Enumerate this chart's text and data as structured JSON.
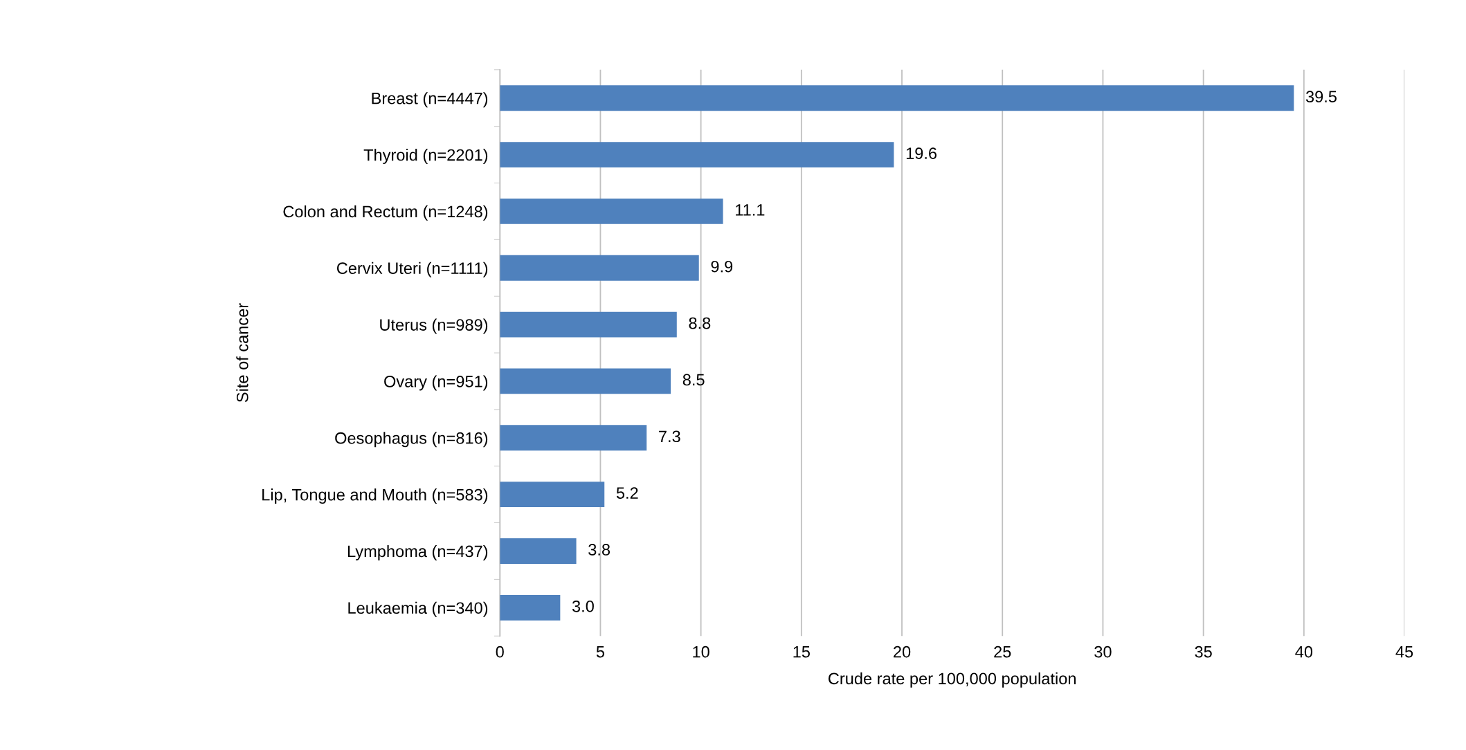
{
  "chart_data": {
    "type": "bar",
    "orientation": "horizontal",
    "xlabel": "Crude rate per 100,000 population",
    "ylabel": "Site of cancer",
    "categories": [
      "Breast (n=4447)",
      "Thyroid (n=2201)",
      "Colon and Rectum (n=1248)",
      "Cervix Uteri (n=1111)",
      "Uterus (n=989)",
      "Ovary (n=951)",
      "Oesophagus (n=816)",
      "Lip, Tongue and Mouth (n=583)",
      "Lymphoma (n=437)",
      "Leukaemia (n=340)"
    ],
    "values": [
      39.5,
      19.6,
      11.1,
      9.9,
      8.8,
      8.5,
      7.3,
      5.2,
      3.8,
      3.0
    ],
    "value_labels": [
      "39.5",
      "19.6",
      "11.1",
      "9.9",
      "8.8",
      "8.5",
      "7.3",
      "5.2",
      "3.8",
      "3.0"
    ],
    "color": "#4f81bd",
    "xlim": [
      0,
      45
    ],
    "xticks": [
      0,
      5,
      10,
      15,
      20,
      25,
      30,
      35,
      40,
      45
    ],
    "grid": "x",
    "legend": false
  }
}
